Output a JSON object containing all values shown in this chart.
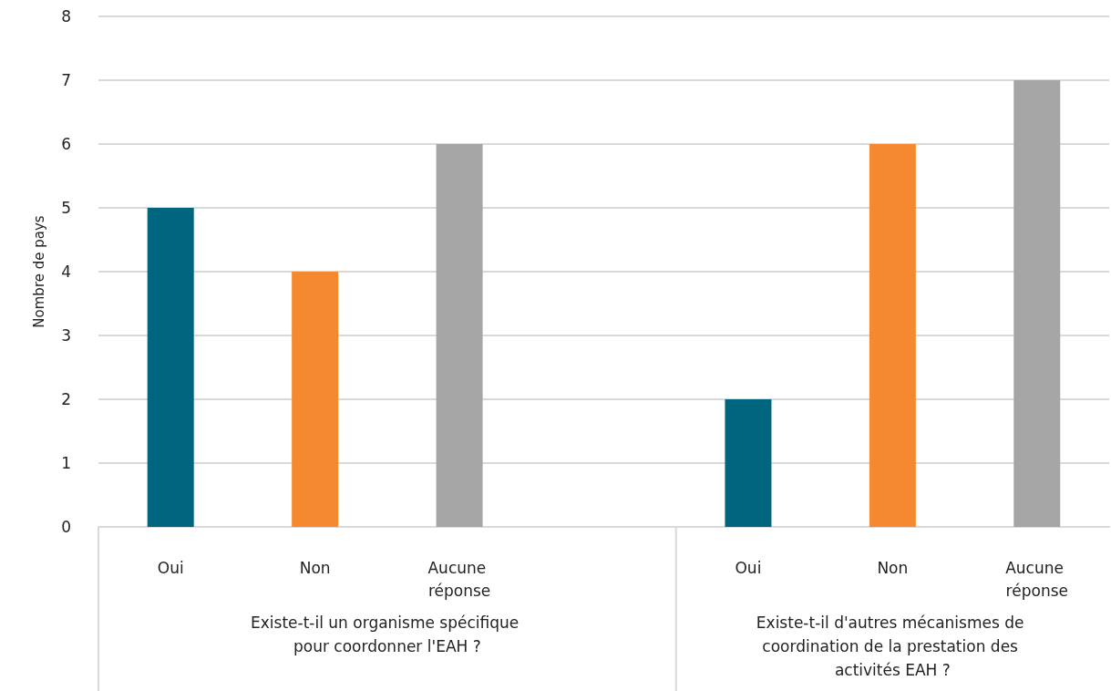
{
  "chart_data": {
    "type": "bar",
    "ylabel": "Nombre de pays",
    "categories": [
      "Oui",
      "Non",
      "Aucune réponse",
      null,
      "Oui",
      "Non",
      "Aucune réponse"
    ],
    "values": [
      5,
      4,
      6,
      null,
      2,
      6,
      7
    ],
    "colors": [
      "#00657f",
      "#f5892f",
      "#a5a5a5",
      null,
      "#00657f",
      "#f5892f",
      "#a5a5a5"
    ],
    "annotations": [
      "Existe-t-il un organisme spécifique pour coordonner l'EAH ?",
      "Existe-t-il d'autres mécanismes de coordination de la prestation des activités EAH ?"
    ],
    "ylim": [
      0,
      8
    ],
    "yticks": [
      0,
      1,
      2,
      3,
      4,
      5,
      6,
      7,
      8
    ],
    "grid": "y"
  }
}
